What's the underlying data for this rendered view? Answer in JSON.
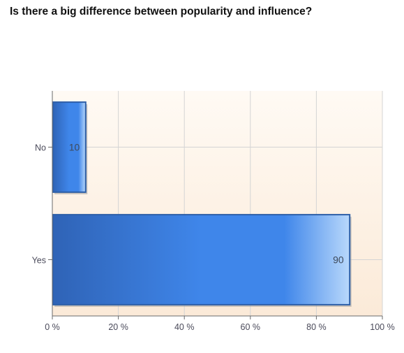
{
  "title": "Is there a big difference between popularity and influence?",
  "chart_data": {
    "type": "bar",
    "orientation": "horizontal",
    "title": "Is there a big difference between popularity and influence?",
    "categories": [
      "No",
      "Yes"
    ],
    "values": [
      10,
      90
    ],
    "data_labels": [
      "10",
      "90"
    ],
    "xlim": [
      0,
      100
    ],
    "x_ticks": [
      0,
      20,
      40,
      60,
      80,
      100
    ],
    "x_tick_labels": [
      "0 %",
      "20 %",
      "40 %",
      "60 %",
      "80 %",
      "100 %"
    ],
    "xlabel": "",
    "ylabel": "",
    "grid": true,
    "legend": "none",
    "colors": {
      "bar_dark": "#2f63b6",
      "bar_mid": "#3f86ea",
      "bar_light": "#b9d8fb",
      "bar_border": "#2d5fa8",
      "plot_bg_top": "#fffaf4",
      "plot_bg_bottom": "#fbead8",
      "grid": "#d4d4d4",
      "axis": "#6a6a6a"
    }
  }
}
